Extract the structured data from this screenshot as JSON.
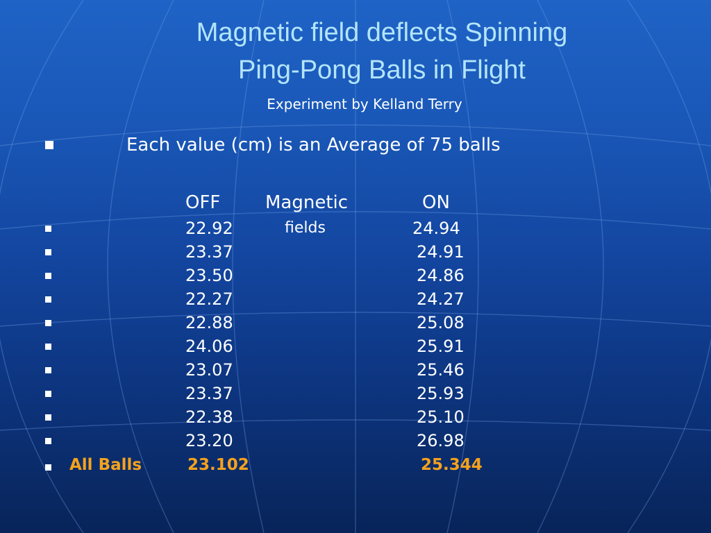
{
  "slide": {
    "title_line1": "Magnetic field deflects Spinning",
    "title_line2": "Ping-Pong Balls in Flight",
    "subtitle": "Experiment by Kelland Terry",
    "intro": "Each value (cm) is an Average of 75 balls",
    "table": {
      "headers": {
        "off": "OFF",
        "mid": "Magnetic",
        "on": "ON"
      },
      "mid_note": "fields",
      "rows": [
        {
          "off": "22.92",
          "on": "24.94"
        },
        {
          "off": "23.37",
          "on": "24.91"
        },
        {
          "off": "23.50",
          "on": "24.86"
        },
        {
          "off": "22.27",
          "on": "24.27"
        },
        {
          "off": "22.88",
          "on": "25.08"
        },
        {
          "off": "24.06",
          "on": "25.91"
        },
        {
          "off": "23.07",
          "on": "25.46"
        },
        {
          "off": "23.37",
          "on": "25.93"
        },
        {
          "off": "22.38",
          "on": "25.10"
        },
        {
          "off": "23.20",
          "on": "26.98"
        }
      ],
      "total": {
        "label": "All Balls",
        "off": "23.102",
        "on": "25.344"
      }
    },
    "colors": {
      "title": "#b3e5fb",
      "text": "#ffffff",
      "total": "#f4a21d",
      "background_top": "#1f63c6",
      "background_bottom": "#082459"
    }
  }
}
